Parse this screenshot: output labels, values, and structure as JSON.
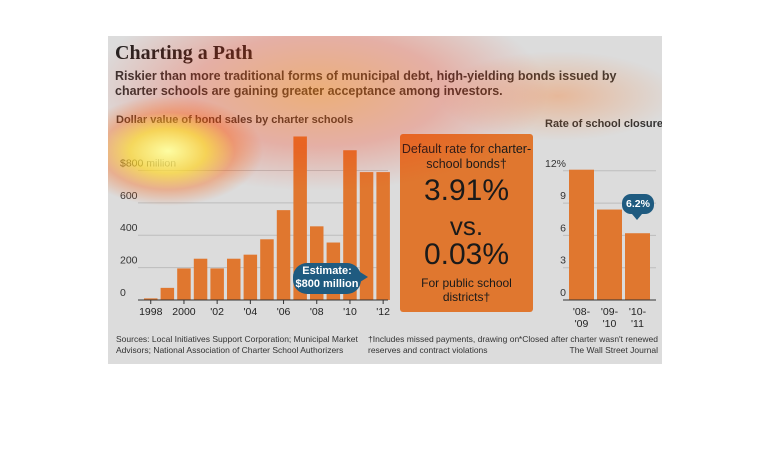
{
  "graphic": {
    "title": "Charting a Path",
    "subtitle": "Riskier than more traditional forms of municipal debt, high-yielding bonds issued by charter schools are gaining greater acceptance among investors.",
    "center_box": {
      "line1": "Default rate for charter-school bonds†",
      "big1": "3.91%",
      "vs": "vs.",
      "big2": "0.03%",
      "line2": "For public school districts†"
    },
    "sources": "Sources: Local Initiatives Support Corporation; Municipal Market Advisors; National Association of Charter School Authorizers",
    "footnote_dagger": "†Includes missed payments, drawing on reserves and contract violations",
    "footnote_star": "*Closed after charter wasn't renewed",
    "credit": "The Wall Street Journal",
    "colors": {
      "bar": "#e0772f",
      "callout": "#1f5b80",
      "background": "#dcdcdc"
    }
  },
  "chart_data": [
    {
      "type": "bar",
      "title": "Dollar value of bond sales by charter schools",
      "x": [
        1998,
        1999,
        2000,
        2001,
        2002,
        2003,
        2004,
        2005,
        2006,
        2007,
        2008,
        2009,
        2010,
        2011,
        2012
      ],
      "tick_labels": [
        "1998",
        "2000",
        "'02",
        "'04",
        "'06",
        "'08",
        "'10",
        "'12"
      ],
      "tick_years": [
        1998,
        2000,
        2002,
        2004,
        2006,
        2008,
        2010,
        2012
      ],
      "values": [
        10,
        75,
        195,
        255,
        195,
        255,
        280,
        375,
        555,
        1010,
        455,
        355,
        925,
        790,
        790
      ],
      "y_ticks": [
        0,
        200,
        400,
        600,
        800
      ],
      "y_tick_labels": [
        "0",
        "200",
        "400",
        "600",
        "$800 million"
      ],
      "ylim": [
        0,
        1050
      ],
      "grid": true,
      "annotation": "Estimate: $800 million"
    },
    {
      "type": "bar",
      "title": "Rate of school closures*",
      "categories": [
        "'08-'09",
        "'09-'10",
        "'10-'11"
      ],
      "values": [
        12.1,
        8.4,
        6.2
      ],
      "y_ticks": [
        0,
        3,
        6,
        9,
        12
      ],
      "y_tick_labels": [
        "0",
        "3",
        "6",
        "9",
        "12%"
      ],
      "ylim": [
        0,
        13
      ],
      "grid": true,
      "annotation": "6.2%"
    }
  ]
}
